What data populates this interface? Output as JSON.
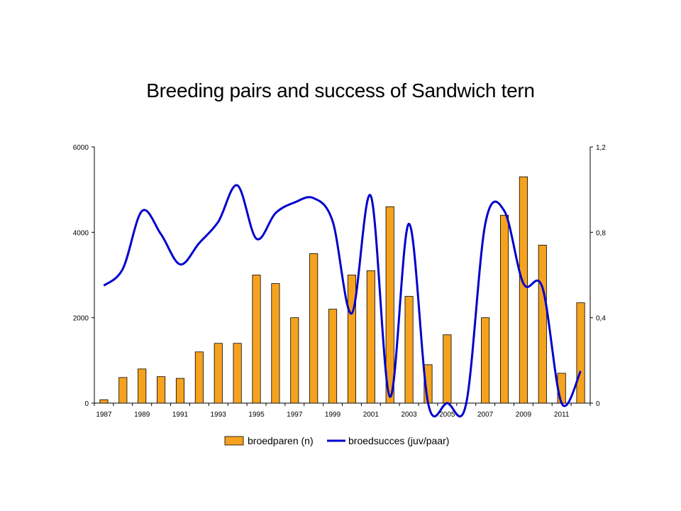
{
  "chart_data": {
    "type": "bar",
    "title": "Breeding pairs and success of Sandwich tern",
    "categories": [
      "1987",
      "1988",
      "1989",
      "1990",
      "1991",
      "1992",
      "1993",
      "1994",
      "1995",
      "1996",
      "1997",
      "1998",
      "1999",
      "2000",
      "2001",
      "2002",
      "2003",
      "2004",
      "2005",
      "2006",
      "2007",
      "2008",
      "2009",
      "2010",
      "2011",
      "2012"
    ],
    "x_tick_labels": [
      "1987",
      "1989",
      "1991",
      "1993",
      "1995",
      "1997",
      "1999",
      "2001",
      "2003",
      "2005",
      "2007",
      "2009",
      "2011"
    ],
    "series": [
      {
        "name": "broedparen (n)",
        "type": "bar",
        "axis": "left",
        "color": "#F5A21F",
        "values": [
          80,
          600,
          800,
          620,
          580,
          1200,
          1400,
          1400,
          3000,
          2800,
          2000,
          3500,
          2200,
          3000,
          3100,
          4600,
          2500,
          900,
          1600,
          0,
          2000,
          4400,
          5300,
          3700,
          700,
          2350
        ]
      },
      {
        "name": "broedsucces (juv/paar)",
        "type": "line",
        "axis": "right",
        "color": "#0000CC",
        "values": [
          0.55,
          0.63,
          0.9,
          0.79,
          0.65,
          0.75,
          0.85,
          1.02,
          0.77,
          0.89,
          0.94,
          0.96,
          0.85,
          0.42,
          0.97,
          0.03,
          0.84,
          0.0,
          0.0,
          0.0,
          0.84,
          0.9,
          0.56,
          0.54,
          0.0,
          0.15
        ]
      }
    ],
    "y_left": {
      "ylim": [
        0,
        6000
      ],
      "ticks": [
        "0",
        "2000",
        "4000",
        "6000"
      ]
    },
    "y_right": {
      "ylim": [
        0,
        1.2
      ],
      "ticks": [
        "0",
        "0,4",
        "0,8",
        "1,2"
      ]
    },
    "grid": false,
    "legend_position": "bottom"
  }
}
